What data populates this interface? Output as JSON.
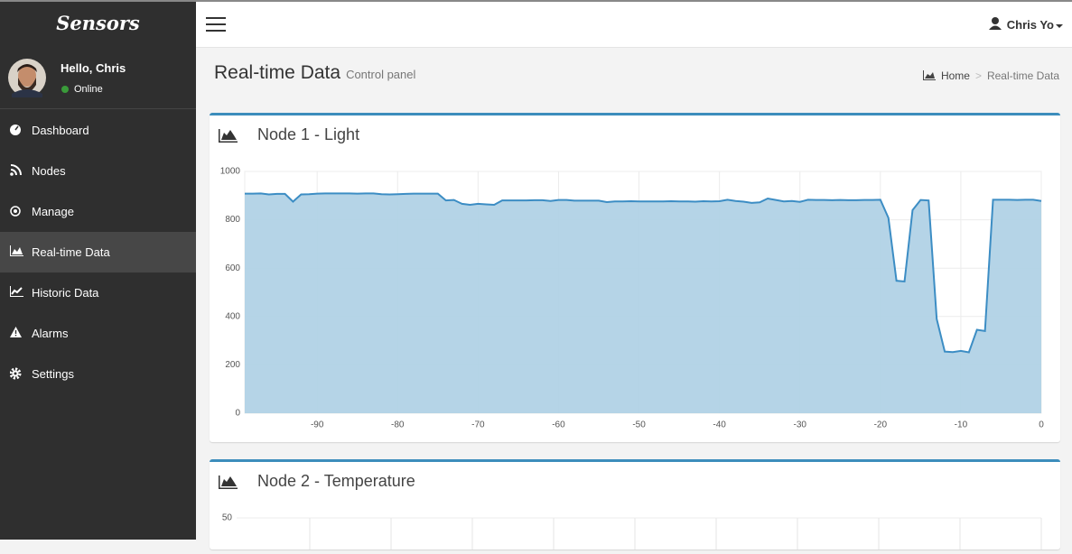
{
  "sidebar": {
    "brand": "Sensors",
    "user": {
      "greeting": "Hello, Chris",
      "status": "Online"
    },
    "menu": [
      {
        "label": "Dashboard"
      },
      {
        "label": "Nodes"
      },
      {
        "label": "Manage"
      },
      {
        "label": "Real-time Data",
        "active": true
      },
      {
        "label": "Historic Data"
      },
      {
        "label": "Alarms"
      },
      {
        "label": "Settings"
      }
    ]
  },
  "header": {
    "user": "Chris Yo"
  },
  "page": {
    "title": "Real-time Data",
    "subtitle": "Control panel",
    "breadcrumb": [
      "Home",
      "Real-time Data"
    ],
    "separator": ">"
  },
  "chart_data": [
    {
      "type": "area",
      "title": "Node 1 - Light",
      "color": "#3c8dc4",
      "fill": "#b1d2e6",
      "x": [
        -99,
        -98,
        -97,
        -96,
        -95,
        -94,
        -93,
        -92,
        -91,
        -90,
        -89,
        -88,
        -87,
        -86,
        -85,
        -84,
        -83,
        -82,
        -81,
        -80,
        -79,
        -78,
        -77,
        -76,
        -75,
        -74,
        -73,
        -72,
        -71,
        -70,
        -69,
        -68,
        -67,
        -66,
        -65,
        -64,
        -63,
        -62,
        -61,
        -60,
        -59,
        -58,
        -57,
        -56,
        -55,
        -54,
        -53,
        -52,
        -51,
        -50,
        -49,
        -48,
        -47,
        -46,
        -45,
        -44,
        -43,
        -42,
        -41,
        -40,
        -39,
        -38,
        -37,
        -36,
        -35,
        -34,
        -33,
        -32,
        -31,
        -30,
        -29,
        -28,
        -27,
        -26,
        -25,
        -24,
        -23,
        -22,
        -21,
        -20,
        -19,
        -18,
        -17,
        -16,
        -15,
        -14,
        -13,
        -12,
        -11,
        -10,
        -9,
        -8,
        -7,
        -6,
        -5,
        -4,
        -3,
        -2,
        -1,
        0
      ],
      "values": [
        908,
        908,
        909,
        905,
        907,
        907,
        875,
        905,
        906,
        908,
        909,
        909,
        909,
        909,
        908,
        909,
        909,
        906,
        905,
        906,
        907,
        908,
        908,
        908,
        908,
        880,
        882,
        866,
        862,
        866,
        864,
        862,
        880,
        880,
        880,
        880,
        881,
        881,
        878,
        882,
        882,
        879,
        879,
        879,
        879,
        873,
        876,
        876,
        877,
        876,
        876,
        876,
        876,
        877,
        876,
        876,
        875,
        877,
        876,
        877,
        883,
        878,
        875,
        870,
        872,
        888,
        882,
        876,
        878,
        874,
        883,
        882,
        882,
        881,
        882,
        881,
        881,
        882,
        882,
        883,
        808,
        548,
        545,
        840,
        882,
        880,
        390,
        255,
        253,
        258,
        252,
        345,
        340,
        883,
        883,
        883,
        882,
        883,
        883,
        878
      ],
      "xlim": [
        -99,
        0
      ],
      "ylim": [
        0,
        1000
      ],
      "xticks": [
        -90,
        -80,
        -70,
        -60,
        -50,
        -40,
        -30,
        -20,
        -10,
        0
      ],
      "yticks": [
        0,
        200,
        400,
        600,
        800,
        1000
      ],
      "grid": true
    },
    {
      "type": "area",
      "title": "Node 2 - Temperature",
      "yticks": [
        50
      ],
      "grid": true
    }
  ]
}
